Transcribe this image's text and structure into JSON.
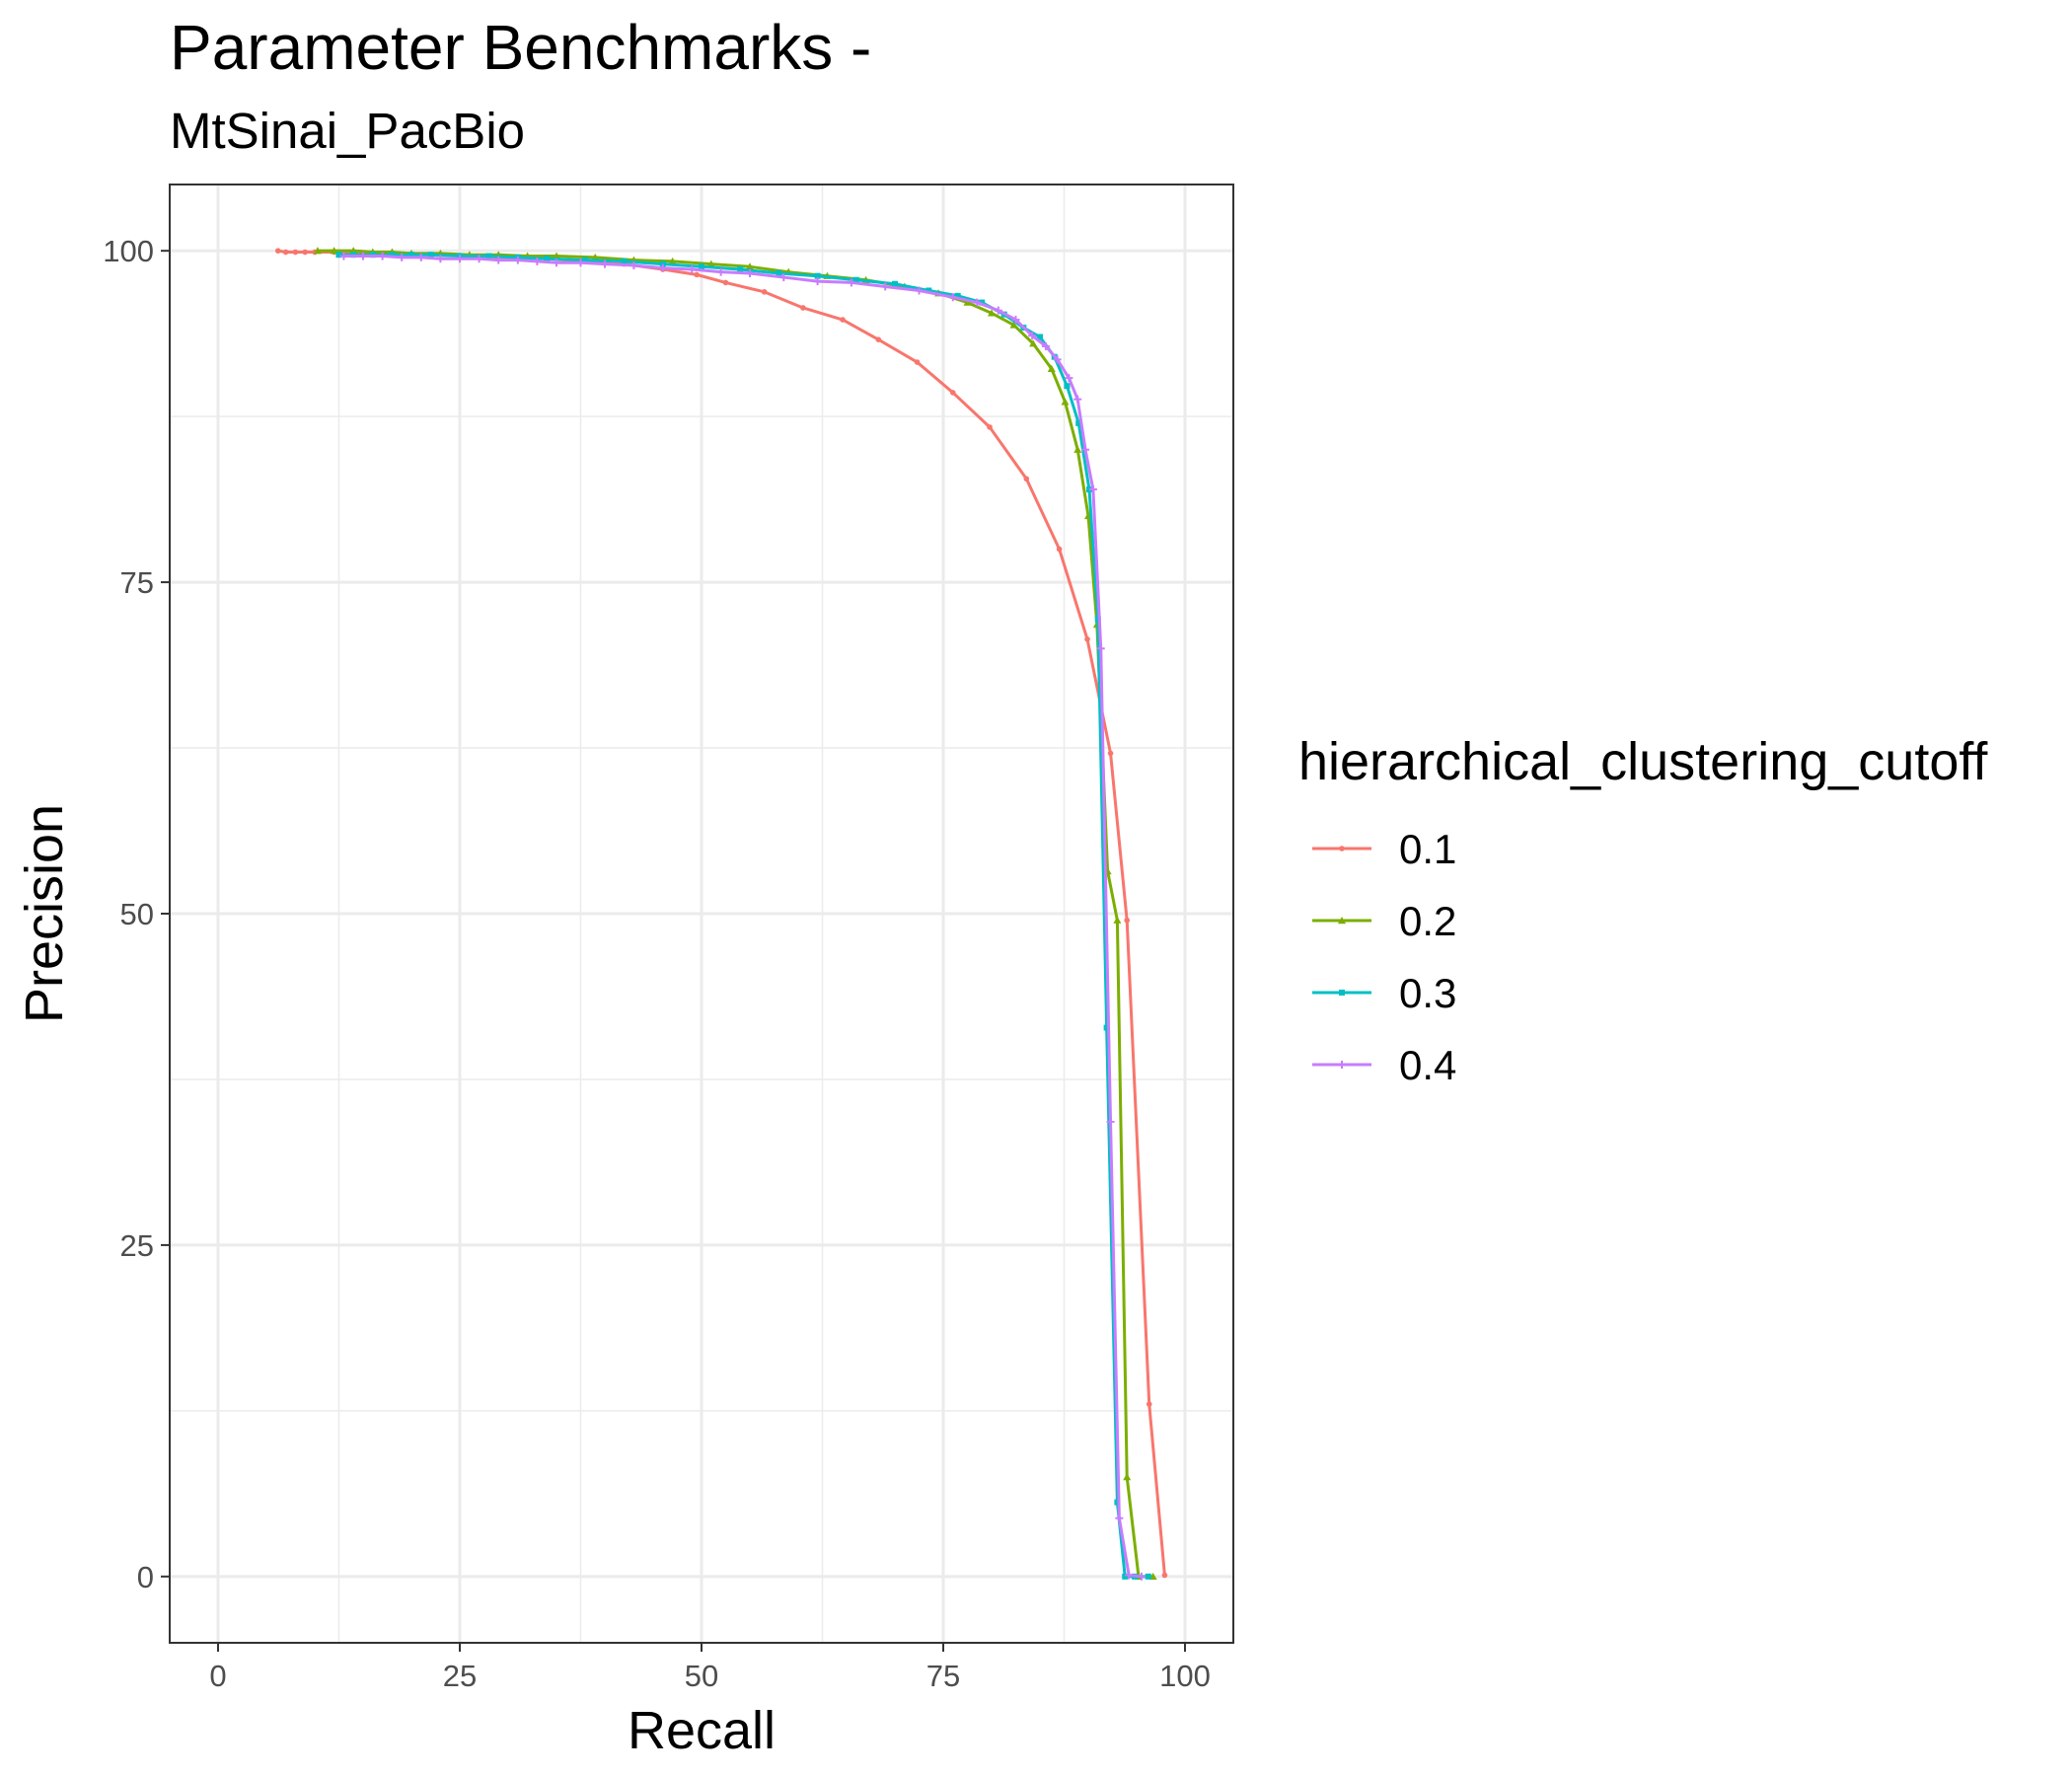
{
  "chart_data": {
    "type": "line",
    "title": "Parameter Benchmarks -",
    "subtitle": "MtSinai_PacBio",
    "xlabel": "Recall",
    "ylabel": "Precision",
    "xlim": [
      -5,
      105
    ],
    "ylim": [
      -5,
      105
    ],
    "xticks": [
      0,
      25,
      50,
      75,
      100
    ],
    "yticks": [
      0,
      25,
      50,
      75,
      100
    ],
    "x_tick_labels": [
      "0",
      "25",
      "50",
      "75",
      "100"
    ],
    "y_tick_labels": [
      "0",
      "25",
      "50",
      "75",
      "100"
    ],
    "grid": true,
    "legend": {
      "title": "hierarchical_clustering_cutoff",
      "position": "right"
    },
    "series": [
      {
        "name": "0.1",
        "color": "#F8766D",
        "marker": "circle",
        "x": [
          6.2,
          7.0,
          8.0,
          9.0,
          10.0,
          12.0,
          15.0,
          18.0,
          22.0,
          26.0,
          30.0,
          34.0,
          38.0,
          42.0,
          46.0,
          49.5,
          52.5,
          56.5,
          60.5,
          64.6,
          68.3,
          72.3,
          76.0,
          79.8,
          83.6,
          87.0,
          89.9,
          92.3,
          94.0,
          96.3,
          97.9
        ],
        "y": [
          100.0,
          99.9,
          99.9,
          99.9,
          99.9,
          99.9,
          99.8,
          99.8,
          99.7,
          99.6,
          99.5,
          99.4,
          99.2,
          99.0,
          98.6,
          98.2,
          97.6,
          96.9,
          95.7,
          94.8,
          93.3,
          91.6,
          89.3,
          86.7,
          82.8,
          77.5,
          70.7,
          62.1,
          49.5,
          13.0,
          0.1
        ]
      },
      {
        "name": "0.2",
        "color": "#7CAE00",
        "marker": "triangle",
        "x": [
          10.3,
          12.0,
          14.0,
          16.0,
          18.0,
          20.0,
          23.0,
          26.0,
          29.0,
          32.0,
          35.0,
          39.0,
          43.0,
          47.0,
          51.0,
          55.0,
          59.0,
          63.0,
          67.0,
          71.0,
          74.5,
          77.5,
          80.0,
          82.3,
          84.3,
          86.2,
          87.6,
          88.9,
          90.0,
          90.9,
          92.0,
          93.0,
          94.0,
          95.2,
          96.7
        ],
        "y": [
          100.0,
          100.0,
          100.0,
          99.9,
          99.9,
          99.8,
          99.8,
          99.7,
          99.7,
          99.6,
          99.6,
          99.5,
          99.3,
          99.2,
          99.0,
          98.8,
          98.4,
          98.1,
          97.8,
          97.3,
          96.8,
          96.1,
          95.3,
          94.4,
          93.0,
          91.1,
          88.6,
          85.0,
          80.0,
          71.8,
          53.2,
          49.5,
          7.5,
          0.0,
          0.0
        ]
      },
      {
        "name": "0.3",
        "color": "#00BFC4",
        "marker": "square",
        "x": [
          12.5,
          14.0,
          16.0,
          18.0,
          20.0,
          22.0,
          25.0,
          28.0,
          31.0,
          34.0,
          38.0,
          42.0,
          46.0,
          50.0,
          54.0,
          58.0,
          62.0,
          66.0,
          70.0,
          73.5,
          76.5,
          79.0,
          81.3,
          83.3,
          85.0,
          86.5,
          87.8,
          89.0,
          90.1,
          91.0,
          91.9,
          93.0,
          93.8,
          94.8,
          96.2
        ],
        "y": [
          99.7,
          99.7,
          99.7,
          99.7,
          99.7,
          99.7,
          99.6,
          99.6,
          99.5,
          99.4,
          99.3,
          99.2,
          99.0,
          98.8,
          98.6,
          98.3,
          98.1,
          97.8,
          97.5,
          97.0,
          96.6,
          96.1,
          95.2,
          94.2,
          93.5,
          92.0,
          89.8,
          87.0,
          82.0,
          72.2,
          41.4,
          5.6,
          0.0,
          0.0,
          0.0
        ]
      },
      {
        "name": "0.4",
        "color": "#C77CFF",
        "marker": "cross",
        "x": [
          13.0,
          15.0,
          17.0,
          19.0,
          21.0,
          23.0,
          25.0,
          27.0,
          29.0,
          31.0,
          33.0,
          35.0,
          37.5,
          40.0,
          43.0,
          46.0,
          49.0,
          52.0,
          55.0,
          58.5,
          62.0,
          65.5,
          69.0,
          72.5,
          76.0,
          78.5,
          80.7,
          82.5,
          84.2,
          85.6,
          86.8,
          88.0,
          88.9,
          89.7,
          90.5,
          91.3,
          92.3,
          93.2,
          94.2,
          95.5
        ],
        "y": [
          99.6,
          99.6,
          99.6,
          99.5,
          99.5,
          99.4,
          99.4,
          99.4,
          99.3,
          99.3,
          99.2,
          99.1,
          99.1,
          99.0,
          98.9,
          98.7,
          98.6,
          98.4,
          98.3,
          98.0,
          97.7,
          97.6,
          97.3,
          97.0,
          96.5,
          96.1,
          95.5,
          94.8,
          93.6,
          92.8,
          91.8,
          90.4,
          88.8,
          85.0,
          82.0,
          70.0,
          34.3,
          4.4,
          0.1,
          0.0
        ]
      }
    ]
  }
}
